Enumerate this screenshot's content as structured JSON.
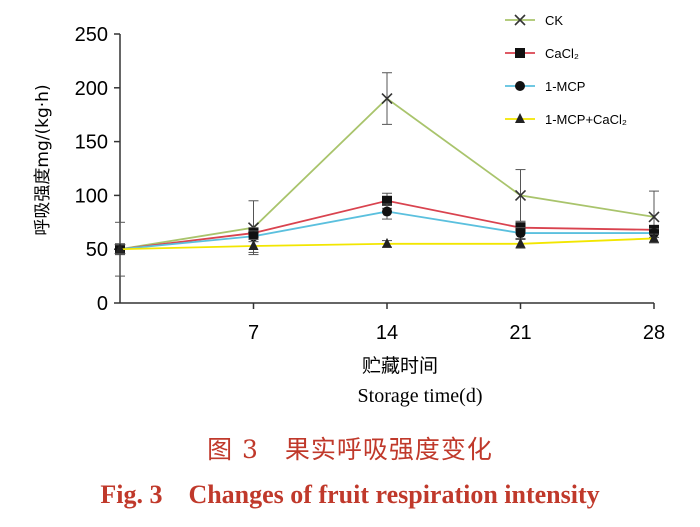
{
  "chart_data": {
    "type": "line",
    "x": [
      0,
      7,
      14,
      21,
      28
    ],
    "xticks": [
      "7",
      "14",
      "21",
      "28"
    ],
    "xtick_values": [
      7,
      14,
      21,
      28
    ],
    "xlim": [
      0,
      28
    ],
    "ylim": [
      0,
      250
    ],
    "yticks": [
      0,
      50,
      100,
      150,
      200,
      250
    ],
    "xlabel_cn": "贮藏时间",
    "xlabel_en": "Storage time(d)",
    "ylabel": "呼吸强度mg/(kg·h)",
    "grid": false,
    "legend_position": "top-right",
    "series": [
      {
        "name": "CK",
        "color": "#a9c46c",
        "marker": "x",
        "values": [
          50,
          70,
          190,
          100,
          80
        ],
        "errors": [
          25,
          25,
          24,
          24,
          24
        ]
      },
      {
        "name": "CaCl₂",
        "color": "#d9434f",
        "marker": "square",
        "values": [
          50,
          65,
          95,
          70,
          68
        ],
        "errors": [
          5,
          5,
          7,
          5,
          4
        ]
      },
      {
        "name": "1-MCP",
        "color": "#5bc0de",
        "marker": "circle",
        "values": [
          50,
          62,
          85,
          65,
          65
        ],
        "errors": [
          5,
          5,
          7,
          5,
          4
        ]
      },
      {
        "name": "1-MCP+CaCl₂",
        "color": "#f2e600",
        "marker": "triangle",
        "values": [
          50,
          53,
          55,
          55,
          60
        ],
        "errors": [
          4,
          6,
          3,
          4,
          4
        ]
      }
    ]
  },
  "caption_cn": "图 3　果实呼吸强度变化",
  "caption_en": "Fig. 3　Changes of fruit respiration intensity"
}
